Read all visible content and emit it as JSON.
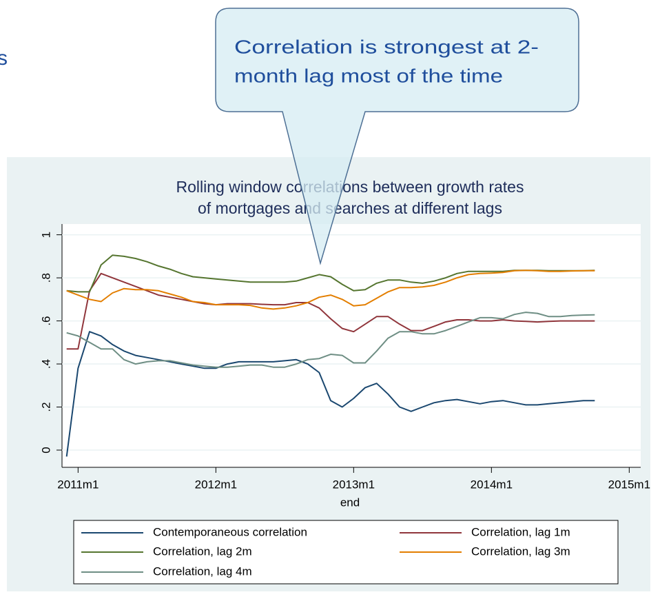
{
  "title_fragment": "s",
  "chart_data": {
    "type": "line",
    "annotation": [
      "Correlation is strongest at 2-",
      "month lag most of the time"
    ],
    "title": [
      "Rolling window correlations between growth rates",
      "of mortgages and searches at different lags"
    ],
    "x_label": "end",
    "x": [
      611,
      612,
      613,
      614,
      615,
      616,
      617,
      618,
      619,
      620,
      621,
      622,
      623,
      624,
      625,
      626,
      627,
      628,
      629,
      630,
      631,
      632,
      633,
      634,
      635,
      636,
      637,
      638,
      639,
      640,
      641,
      642,
      643,
      644,
      645,
      646,
      647,
      648,
      649,
      650,
      651,
      652,
      653,
      654,
      655,
      656,
      657
    ],
    "xlim": [
      610.6,
      661
    ],
    "xticks": [
      {
        "value": 612,
        "label": "2011m1"
      },
      {
        "value": 624,
        "label": "2012m1"
      },
      {
        "value": 636,
        "label": "2013m1"
      },
      {
        "value": 648,
        "label": "2014m1"
      },
      {
        "value": 660,
        "label": "2015m1"
      }
    ],
    "ylim": [
      -0.08,
      1.05
    ],
    "yticks": [
      0,
      {
        "value": 0.2,
        "label": ".2"
      },
      {
        "value": 0.4,
        "label": ".4"
      },
      {
        "value": 0.6,
        "label": ".6"
      },
      {
        "value": 0.8,
        "label": ".8"
      },
      1
    ],
    "grid": true,
    "legend": "bottom",
    "series": [
      {
        "name": "Contemporaneous correlation",
        "color": "#1a476f",
        "values": [
          -0.03,
          0.38,
          0.55,
          0.53,
          0.49,
          0.46,
          0.44,
          0.43,
          0.42,
          0.41,
          0.4,
          0.39,
          0.38,
          0.38,
          0.4,
          0.41,
          0.41,
          0.41,
          0.41,
          0.415,
          0.42,
          0.4,
          0.36,
          0.23,
          0.2,
          0.24,
          0.29,
          0.31,
          0.26,
          0.2,
          0.18,
          0.2,
          0.22,
          0.23,
          0.235,
          0.225,
          0.215,
          0.225,
          0.23,
          0.22,
          0.21,
          0.21,
          0.215,
          0.22,
          0.225,
          0.23,
          0.23
        ]
      },
      {
        "name": "Correlation, lag 1m",
        "color": "#90353b",
        "values": [
          0.47,
          0.47,
          0.74,
          0.82,
          0.8,
          0.78,
          0.76,
          0.74,
          0.72,
          0.71,
          0.7,
          0.69,
          0.68,
          0.675,
          0.68,
          0.68,
          0.68,
          0.677,
          0.675,
          0.675,
          0.685,
          0.685,
          0.66,
          0.61,
          0.565,
          0.55,
          0.585,
          0.62,
          0.62,
          0.585,
          0.555,
          0.555,
          0.575,
          0.595,
          0.605,
          0.605,
          0.6,
          0.6,
          0.605,
          0.6,
          0.598,
          0.595,
          0.598,
          0.6,
          0.6,
          0.6,
          0.6
        ]
      },
      {
        "name": "Correlation, lag 2m",
        "color": "#55752f",
        "values": [
          0.74,
          0.735,
          0.735,
          0.86,
          0.905,
          0.9,
          0.89,
          0.875,
          0.855,
          0.84,
          0.82,
          0.805,
          0.8,
          0.795,
          0.79,
          0.785,
          0.78,
          0.78,
          0.78,
          0.78,
          0.785,
          0.8,
          0.815,
          0.805,
          0.77,
          0.74,
          0.745,
          0.775,
          0.79,
          0.79,
          0.78,
          0.775,
          0.785,
          0.8,
          0.82,
          0.83,
          0.83,
          0.83,
          0.83,
          0.835,
          0.835,
          0.835,
          0.833,
          0.833,
          0.833,
          0.833,
          0.835
        ]
      },
      {
        "name": "Correlation, lag 3m",
        "color": "#e37e00",
        "values": [
          0.74,
          0.72,
          0.7,
          0.69,
          0.73,
          0.75,
          0.745,
          0.745,
          0.74,
          0.725,
          0.71,
          0.69,
          0.685,
          0.675,
          0.675,
          0.675,
          0.672,
          0.66,
          0.655,
          0.66,
          0.67,
          0.685,
          0.71,
          0.72,
          0.7,
          0.67,
          0.675,
          0.705,
          0.735,
          0.755,
          0.755,
          0.758,
          0.765,
          0.78,
          0.8,
          0.815,
          0.82,
          0.822,
          0.825,
          0.833,
          0.835,
          0.833,
          0.83,
          0.83,
          0.832,
          0.833,
          0.833
        ]
      },
      {
        "name": "Correlation, lag 4m",
        "color": "#6e8e84",
        "values": [
          0.545,
          0.53,
          0.5,
          0.47,
          0.47,
          0.42,
          0.4,
          0.41,
          0.415,
          0.415,
          0.405,
          0.395,
          0.39,
          0.385,
          0.385,
          0.39,
          0.395,
          0.395,
          0.385,
          0.385,
          0.4,
          0.42,
          0.425,
          0.445,
          0.44,
          0.405,
          0.405,
          0.46,
          0.52,
          0.55,
          0.55,
          0.54,
          0.54,
          0.555,
          0.575,
          0.595,
          0.615,
          0.615,
          0.61,
          0.63,
          0.64,
          0.635,
          0.62,
          0.62,
          0.625,
          0.627,
          0.628
        ]
      }
    ]
  }
}
